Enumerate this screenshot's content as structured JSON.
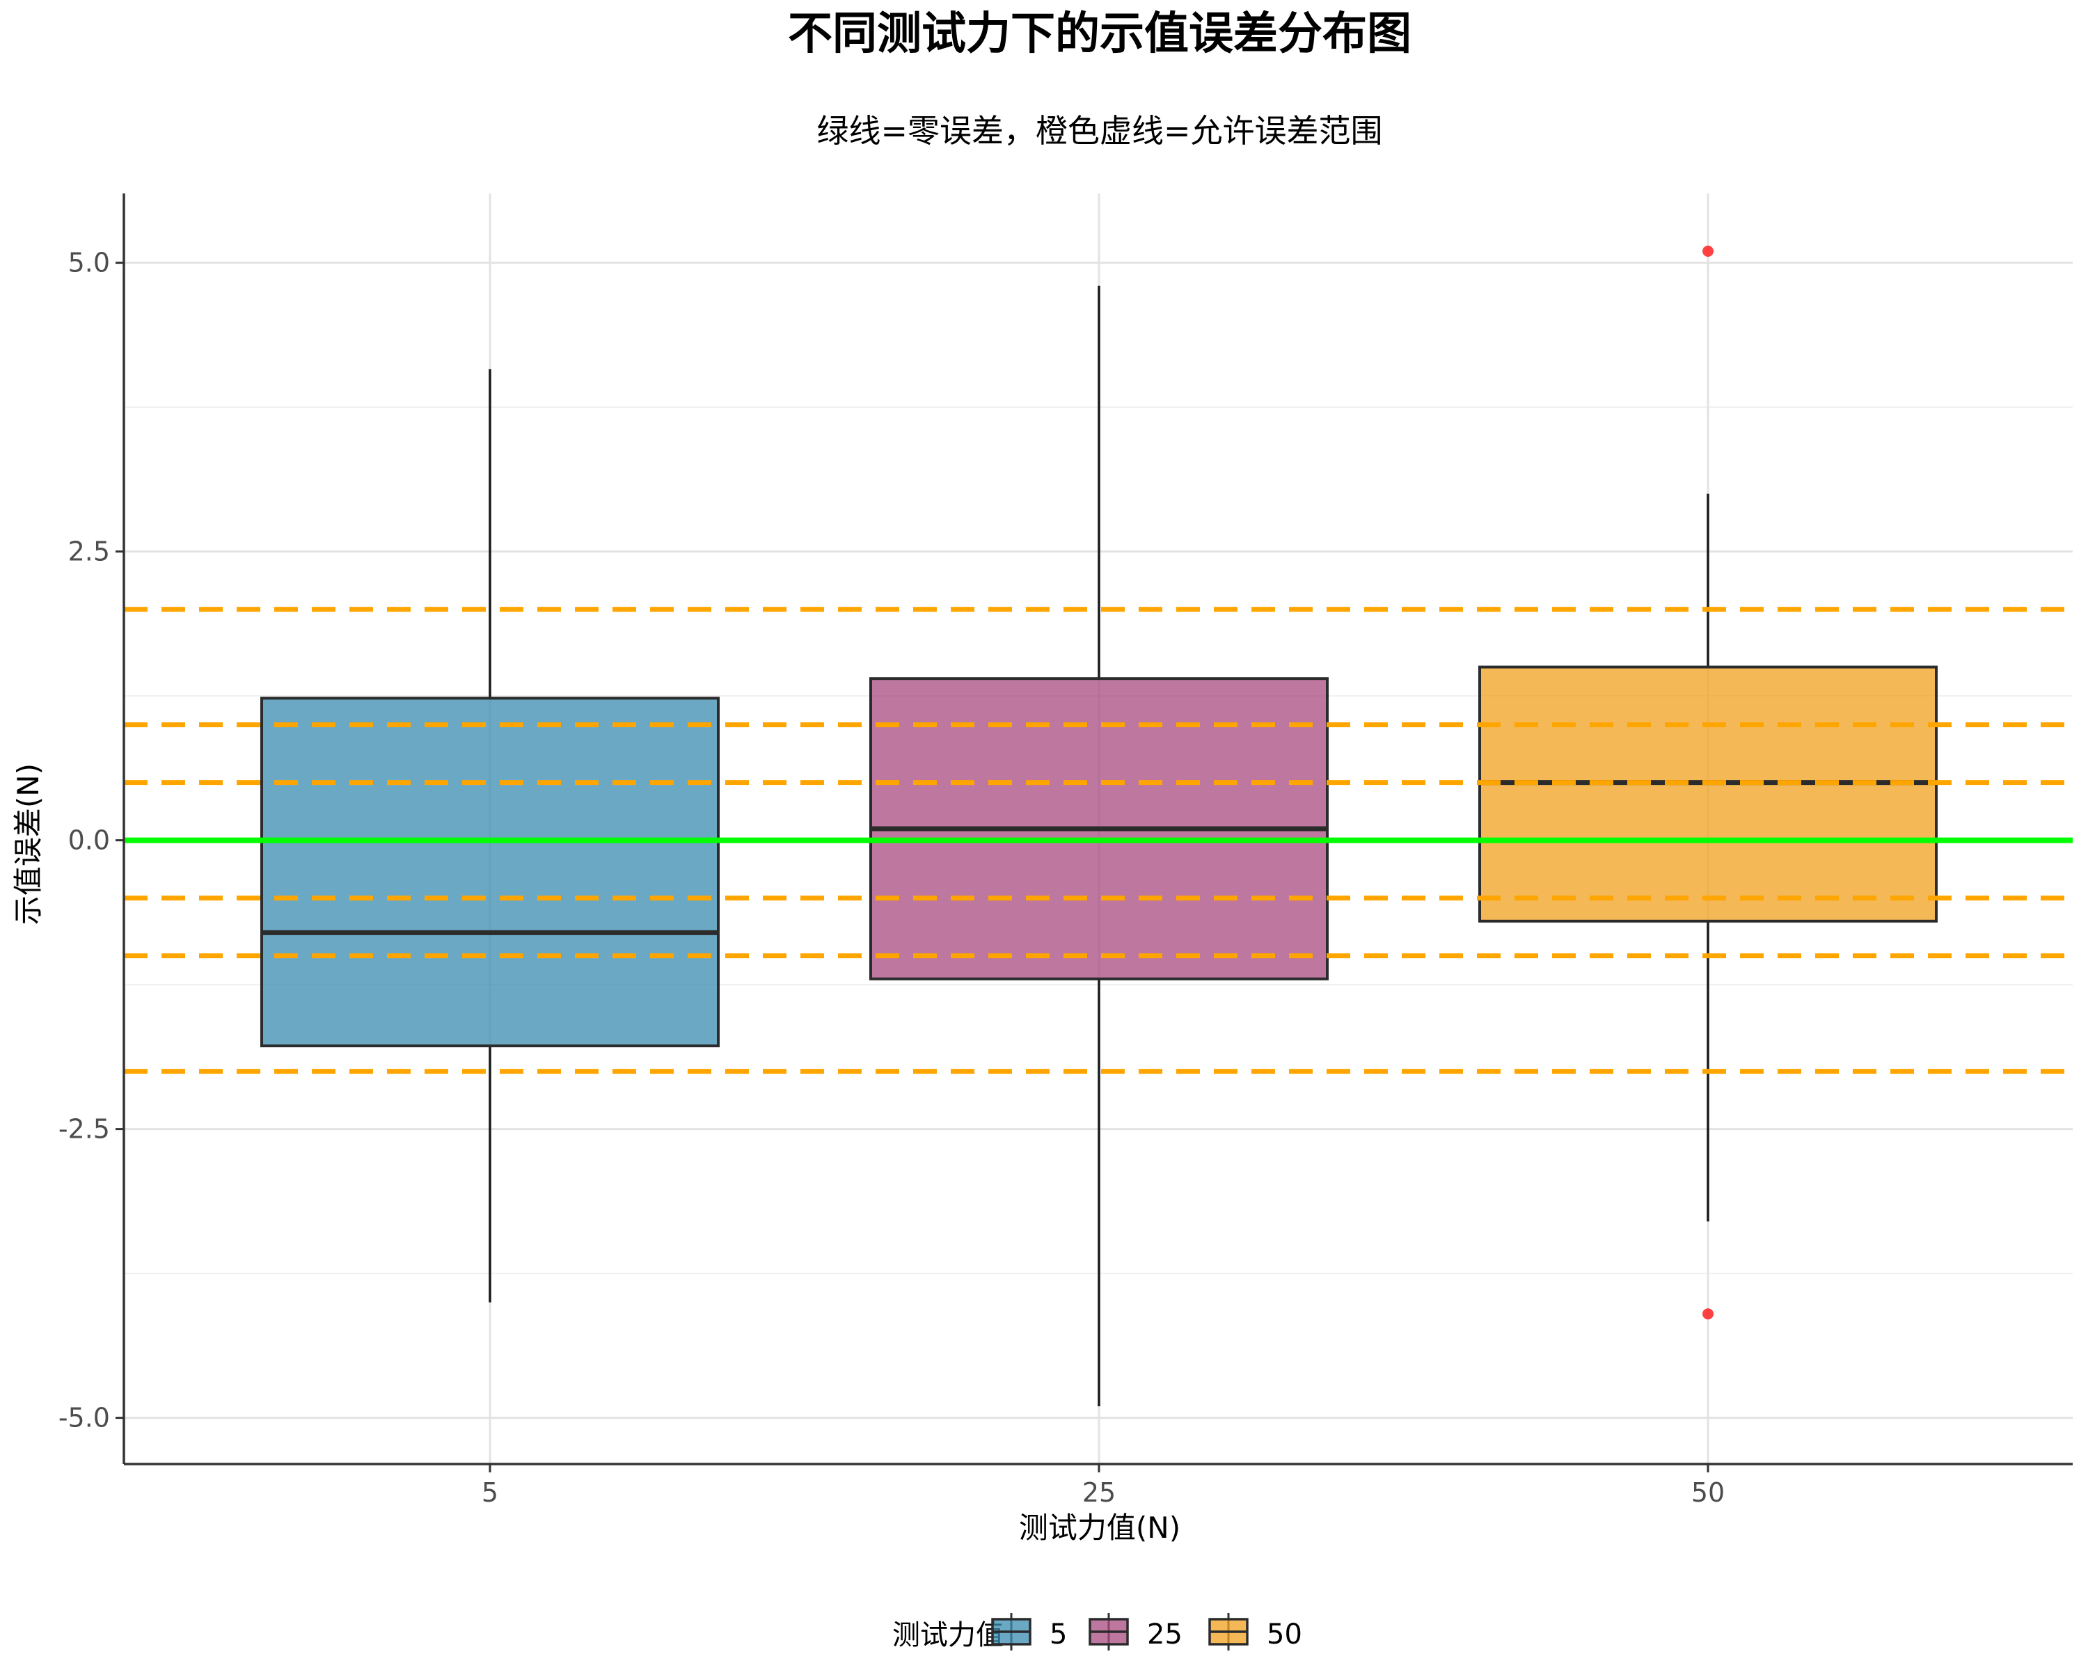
{
  "chart_data": {
    "type": "box",
    "title": "不同测试力下的示值误差分布图",
    "subtitle": "绿线=零误差，橙色虚线=允许误差范围",
    "xlabel": "测试力值(N)",
    "ylabel": "示值误差(N)",
    "categories": [
      "5",
      "25",
      "50"
    ],
    "ylim": [
      -5.4,
      5.6
    ],
    "yticks": [
      -5.0,
      -2.5,
      0.0,
      2.5,
      5.0
    ],
    "ytick_labels": [
      "-5.0",
      "-2.5",
      "0.0",
      "2.5",
      "5.0"
    ],
    "grid": true,
    "boxes": [
      {
        "category": "5",
        "whisker_low": -4.0,
        "q1": -1.78,
        "median": -0.8,
        "q3": 1.23,
        "whisker_high": 4.08,
        "outliers": [],
        "color": "#3a8bb0"
      },
      {
        "category": "25",
        "whisker_low": -4.9,
        "q1": -1.2,
        "median": 0.1,
        "q3": 1.4,
        "whisker_high": 4.8,
        "outliers": [],
        "color": "#a84a7f"
      },
      {
        "category": "50",
        "whisker_low": -3.3,
        "q1": -0.7,
        "median": 0.5,
        "q3": 1.5,
        "whisker_high": 3.0,
        "outliers": [
          5.1,
          -4.1
        ],
        "color": "#f0a01e"
      }
    ],
    "zero_line": {
      "value": 0.0,
      "color": "#00ff00"
    },
    "tolerance_lines": {
      "values": [
        2.0,
        1.0,
        0.5,
        -0.5,
        -1.0,
        -2.0
      ],
      "color": "#ffa500"
    },
    "outlier_color": "#ff2020",
    "legend": {
      "title": "测试力值",
      "position": "bottom",
      "labels": [
        "5",
        "25",
        "50"
      ]
    }
  }
}
